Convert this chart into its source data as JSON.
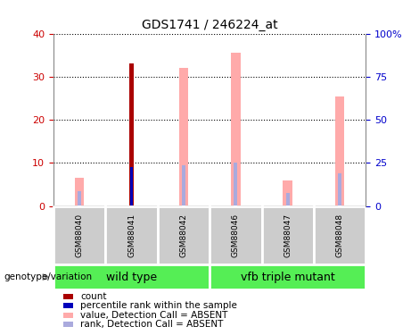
{
  "title": "GDS1741 / 246224_at",
  "samples": [
    "GSM88040",
    "GSM88041",
    "GSM88042",
    "GSM88046",
    "GSM88047",
    "GSM88048"
  ],
  "groups": [
    {
      "name": "wild type",
      "indices": [
        0,
        1,
        2
      ]
    },
    {
      "name": "vfb triple mutant",
      "indices": [
        3,
        4,
        5
      ]
    }
  ],
  "left_ylim": [
    0,
    40
  ],
  "right_ylim": [
    0,
    100
  ],
  "left_yticks": [
    0,
    10,
    20,
    30,
    40
  ],
  "right_yticks": [
    0,
    25,
    50,
    75,
    100
  ],
  "right_yticklabels": [
    "0",
    "25",
    "50",
    "75",
    "100%"
  ],
  "bar_data": {
    "GSM88040": {
      "value_absent": 6.5,
      "rank_absent": 3.5,
      "count": null,
      "percentile": null
    },
    "GSM88041": {
      "value_absent": null,
      "rank_absent": null,
      "count": 33,
      "percentile": 9
    },
    "GSM88042": {
      "value_absent": 32,
      "rank_absent": 9.5,
      "count": null,
      "percentile": null
    },
    "GSM88046": {
      "value_absent": 35.5,
      "rank_absent": 10,
      "count": null,
      "percentile": null
    },
    "GSM88047": {
      "value_absent": 6,
      "rank_absent": 3,
      "count": null,
      "percentile": null
    },
    "GSM88048": {
      "value_absent": 25.5,
      "rank_absent": 7.5,
      "count": null,
      "percentile": null
    }
  },
  "colors": {
    "count": "#aa0000",
    "percentile": "#0000bb",
    "value_absent": "#ffaaaa",
    "rank_absent": "#aaaadd",
    "left_tick": "#cc0000",
    "right_tick": "#0000cc",
    "grid": "#000000",
    "group_bg": "#55ee55",
    "sample_bg": "#cccccc",
    "plot_bg": "#ffffff",
    "spine": "#888888"
  },
  "value_bar_width": 0.18,
  "rank_bar_width": 0.07,
  "count_bar_width": 0.07,
  "percentile_bar_width": 0.05,
  "legend_items": [
    {
      "color": "#aa0000",
      "label": "count"
    },
    {
      "color": "#0000bb",
      "label": "percentile rank within the sample"
    },
    {
      "color": "#ffaaaa",
      "label": "value, Detection Call = ABSENT"
    },
    {
      "color": "#aaaadd",
      "label": "rank, Detection Call = ABSENT"
    }
  ]
}
